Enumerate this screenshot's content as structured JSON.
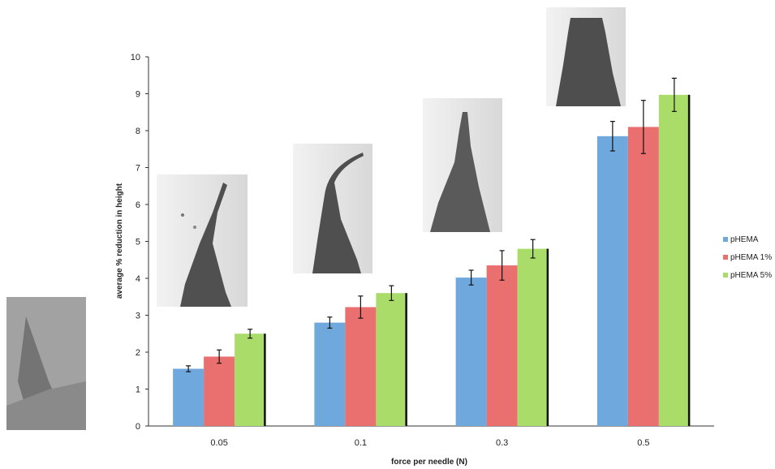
{
  "chart_data": {
    "type": "bar",
    "title": "",
    "xlabel": "force per needle (N)",
    "ylabel": "average % reduction in height",
    "categories": [
      "0.05",
      "0.1",
      "0.3",
      "0.5"
    ],
    "ylim": [
      0,
      10
    ],
    "yticks": [
      0,
      1,
      2,
      3,
      4,
      5,
      6,
      7,
      8,
      9,
      10
    ],
    "grid": false,
    "legend_position": "right",
    "series": [
      {
        "name": "pHEMA",
        "color": "#6fa8dc",
        "values": [
          1.55,
          2.8,
          4.02,
          7.85
        ],
        "errors": [
          0.08,
          0.15,
          0.2,
          0.4
        ]
      },
      {
        "name": "pHEMA 1%",
        "color": "#ea6f6f",
        "values": [
          1.88,
          3.22,
          4.35,
          8.1
        ],
        "errors": [
          0.18,
          0.3,
          0.4,
          0.72
        ]
      },
      {
        "name": "pHEMA 5%",
        "color": "#a9dc68",
        "values": [
          2.5,
          3.6,
          4.8,
          8.97
        ],
        "errors": [
          0.12,
          0.2,
          0.25,
          0.45
        ]
      }
    ]
  }
}
